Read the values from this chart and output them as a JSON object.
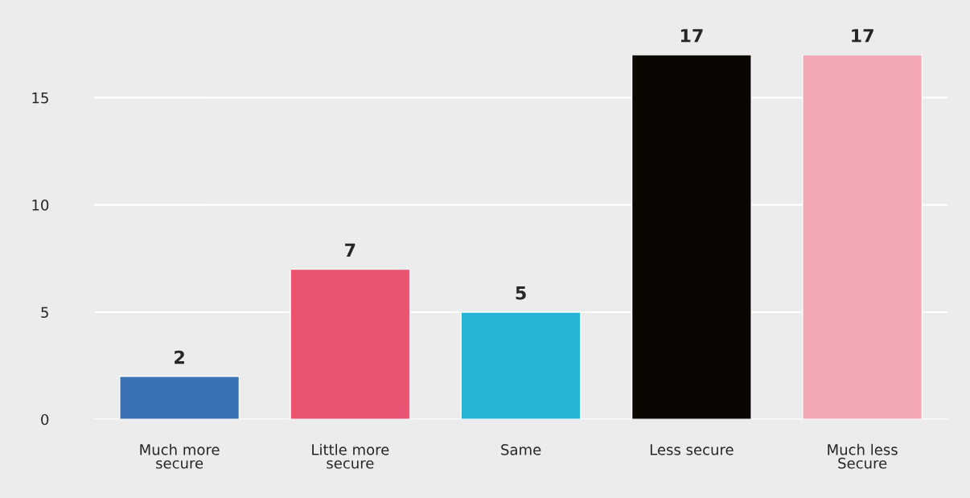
{
  "chart_data": {
    "type": "bar",
    "categories": [
      "Much more\nsecure",
      "Little more\nsecure",
      "Same",
      "Less secure",
      "Much less\nSecure"
    ],
    "values": [
      2,
      7,
      5,
      17,
      17
    ],
    "colors": [
      "#3a72b5",
      "#ea5372",
      "#25b5d6",
      "#0a0702",
      "#f4a8b5"
    ],
    "ylim": [
      0,
      17
    ],
    "yticks": [
      0,
      5,
      10,
      15
    ],
    "grid": "y",
    "data_labels": true
  }
}
